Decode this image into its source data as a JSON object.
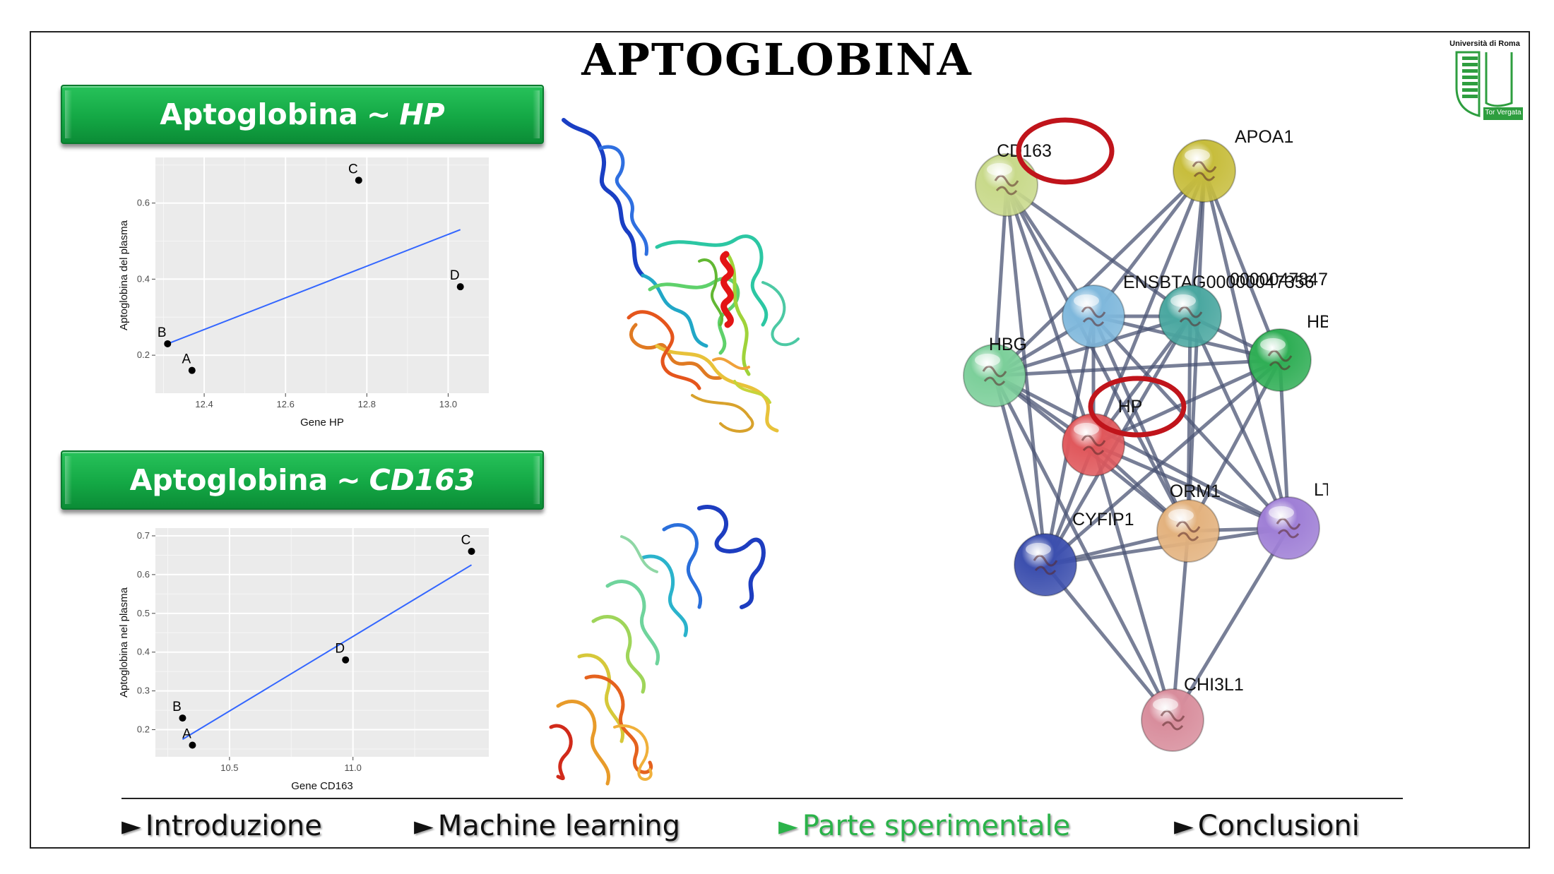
{
  "slide": {
    "title": "APTOGLOBINA"
  },
  "logo": {
    "top_text": "Università di Roma",
    "bottom_text": "Tor Vergata",
    "color": "#2e9e3f"
  },
  "banners": {
    "hp": {
      "prefix": "Aptoglobina",
      "sep": "~",
      "gene": "HP"
    },
    "cd163": {
      "prefix": "Aptoglobina",
      "sep": "~",
      "gene": "CD163"
    }
  },
  "chart_data": [
    {
      "type": "scatter",
      "xlabel": "Gene HP",
      "ylabel": "Aptoglobina del plasma",
      "xlim": [
        12.28,
        13.1
      ],
      "ylim": [
        0.1,
        0.72
      ],
      "xticks": [
        12.4,
        12.6,
        12.8,
        13.0
      ],
      "yticks": [
        0.2,
        0.4,
        0.6
      ],
      "tick_labels_x": [
        "12.4",
        "12.6",
        "12.8",
        "13.0"
      ],
      "tick_labels_y": [
        "0.2",
        "0.4",
        "0.6"
      ],
      "points": [
        {
          "label": "A",
          "x": 12.37,
          "y": 0.16
        },
        {
          "label": "B",
          "x": 12.31,
          "y": 0.23
        },
        {
          "label": "C",
          "x": 12.78,
          "y": 0.66
        },
        {
          "label": "D",
          "x": 13.03,
          "y": 0.38
        }
      ],
      "fit_line": {
        "x": [
          12.31,
          13.03
        ],
        "y": [
          0.23,
          0.53
        ]
      },
      "grid": true
    },
    {
      "type": "scatter",
      "xlabel": "Gene CD163",
      "ylabel": "Aptoglobina nel plasma",
      "xlim": [
        10.2,
        11.55
      ],
      "ylim": [
        0.13,
        0.72
      ],
      "xticks": [
        10.5,
        11.0
      ],
      "yticks": [
        0.2,
        0.3,
        0.4,
        0.5,
        0.6,
        0.7
      ],
      "tick_labels_x": [
        "10.5",
        "11.0"
      ],
      "tick_labels_y": [
        "0.2",
        "0.3",
        "0.4",
        "0.5",
        "0.6",
        "0.7"
      ],
      "points": [
        {
          "label": "A",
          "x": 10.35,
          "y": 0.16
        },
        {
          "label": "B",
          "x": 10.31,
          "y": 0.23
        },
        {
          "label": "C",
          "x": 11.48,
          "y": 0.66
        },
        {
          "label": "D",
          "x": 10.97,
          "y": 0.38
        }
      ],
      "fit_line": {
        "x": [
          10.31,
          11.48
        ],
        "y": [
          0.175,
          0.625
        ]
      },
      "grid": true
    }
  ],
  "network": {
    "nodes": [
      {
        "id": "CD163",
        "label": "CD163",
        "color": "#c8d98a",
        "highlight": true
      },
      {
        "id": "APOA1",
        "label": "APOA1",
        "color": "#c7bd3c"
      },
      {
        "id": "ENSBTAG",
        "label": "ENSBTAG00000047356",
        "color": "#7fb8dc"
      },
      {
        "id": "ENS2",
        "label": "0000047847",
        "color": "#4aa7a0"
      },
      {
        "id": "HBG",
        "label": "HBG",
        "color": "#7ccf9a"
      },
      {
        "id": "HBB",
        "label": "HBB",
        "color": "#2fae55"
      },
      {
        "id": "HP",
        "label": "HP",
        "color": "#e0585c",
        "highlight": true
      },
      {
        "id": "ORM1",
        "label": "ORM1",
        "color": "#e3b27e"
      },
      {
        "id": "LTF",
        "label": "LTF",
        "color": "#9f7fd6"
      },
      {
        "id": "CYFIP1",
        "label": "CYFIP1",
        "color": "#3c4fae"
      },
      {
        "id": "CHI3L1",
        "label": "CHI3L1",
        "color": "#d88d9c"
      }
    ],
    "edge_color": "#4b5474",
    "highlight_color": "#c0141b"
  },
  "nav": {
    "items": [
      {
        "label": "Introduzione",
        "active": false
      },
      {
        "label": "Machine learning",
        "active": false
      },
      {
        "label": "Parte sperimentale",
        "active": true
      },
      {
        "label": "Conclusioni",
        "active": false
      }
    ],
    "marker": "►"
  }
}
